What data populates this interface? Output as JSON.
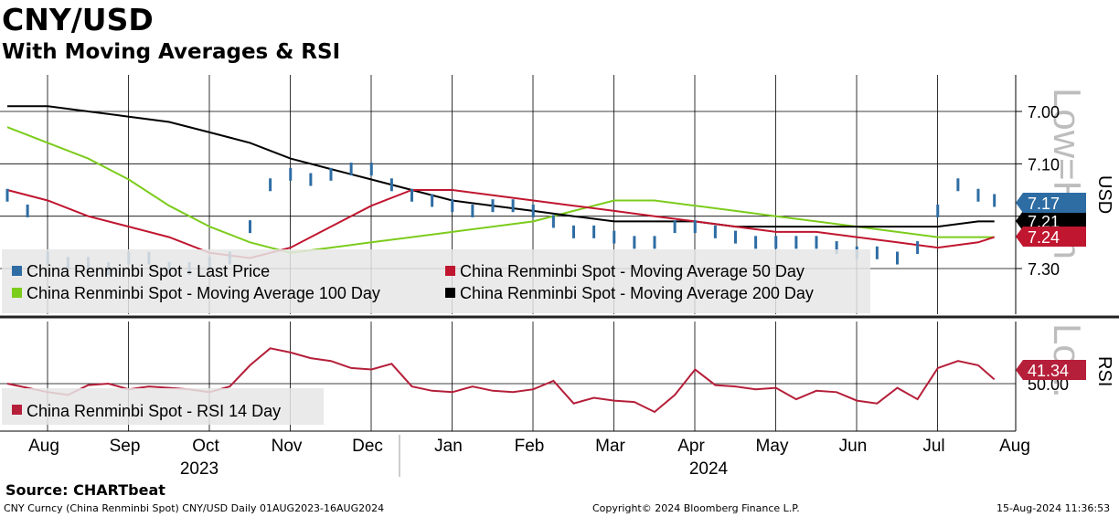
{
  "title": "CNY/USD",
  "subtitle": "With Moving Averages & RSI",
  "source": "Source: CHARTbeat",
  "footer": {
    "left": "CNY Curncy (China Renminbi Spot) CNY/USD  Daily 01AUG2023-16AUG2024",
    "center": "Copyright© 2024 Bloomberg Finance L.P.",
    "right": "15-Aug-2024 11:36:53"
  },
  "watermark": [
    "Low=High",
    "Lo..."
  ],
  "colors": {
    "price": "#2e6da4",
    "ma50": "#c0162f",
    "ma100": "#7ccc1c",
    "ma200": "#000000",
    "rsi": "#b51f3a",
    "legend_bg": "#e6e6e6"
  },
  "chart_data": [
    {
      "type": "line",
      "name": "price-panel",
      "ylabel": "USD",
      "y_inverted": true,
      "ylim": [
        6.96,
        7.36
      ],
      "yticks": [
        "7.00",
        "7.10",
        "7.20",
        "7.30"
      ],
      "yticks_values": [
        7.0,
        7.1,
        7.2,
        7.3
      ],
      "gridlines": [
        7.0,
        7.1,
        7.2,
        7.3
      ],
      "x_months": [
        "Aug",
        "Sep",
        "Oct",
        "Nov",
        "Dec",
        "Jan",
        "Feb",
        "Mar",
        "Apr",
        "May",
        "Jun",
        "Jul",
        "Aug"
      ],
      "x_years": [
        "2023",
        "2024"
      ],
      "legend": [
        "China Renminbi Spot - Last Price",
        "China Renminbi Spot - Moving Average 50 Day",
        "China Renminbi Spot - Moving Average 100 Day",
        "China Renminbi Spot - Moving Average 200 Day"
      ],
      "right_labels": [
        {
          "text": "7.17",
          "series": "price"
        },
        {
          "text": "7.21",
          "series": "ma200"
        },
        {
          "text": "7.24",
          "series": "ma50"
        }
      ],
      "series": [
        {
          "name": "China Renminbi Spot - Last Price",
          "key": "price",
          "x": [
            0,
            0.25,
            0.5,
            0.75,
            1,
            1.25,
            1.5,
            1.75,
            2,
            2.25,
            2.5,
            2.75,
            3,
            3.25,
            3.5,
            3.75,
            4,
            4.25,
            4.5,
            4.75,
            5,
            5.25,
            5.5,
            5.75,
            6,
            6.25,
            6.5,
            6.75,
            7,
            7.25,
            7.5,
            7.75,
            8,
            8.25,
            8.5,
            8.75,
            9,
            9.25,
            9.5,
            9.75,
            10,
            10.25,
            10.5,
            10.75,
            11,
            11.25,
            11.5,
            11.75,
            12,
            12.2
          ],
          "values": [
            7.16,
            7.19,
            7.28,
            7.29,
            7.29,
            7.3,
            7.28,
            7.28,
            7.3,
            7.3,
            7.29,
            7.28,
            7.22,
            7.14,
            7.12,
            7.13,
            7.12,
            7.11,
            7.11,
            7.14,
            7.16,
            7.17,
            7.18,
            7.19,
            7.18,
            7.18,
            7.19,
            7.21,
            7.23,
            7.23,
            7.24,
            7.25,
            7.25,
            7.22,
            7.22,
            7.23,
            7.24,
            7.25,
            7.25,
            7.25,
            7.25,
            7.26,
            7.27,
            7.27,
            7.28,
            7.26,
            7.19,
            7.14,
            7.16,
            7.17
          ]
        },
        {
          "name": "China Renminbi Spot - Moving Average 50 Day",
          "key": "ma50",
          "x": [
            0,
            0.5,
            1,
            1.5,
            2,
            2.5,
            3,
            3.5,
            4,
            4.5,
            5,
            5.5,
            6,
            6.5,
            7,
            7.5,
            8,
            8.5,
            9,
            9.5,
            10,
            10.5,
            11,
            11.5,
            12,
            12.2
          ],
          "values": [
            7.15,
            7.17,
            7.2,
            7.22,
            7.24,
            7.27,
            7.28,
            7.26,
            7.22,
            7.18,
            7.15,
            7.15,
            7.16,
            7.17,
            7.18,
            7.19,
            7.2,
            7.21,
            7.22,
            7.23,
            7.23,
            7.24,
            7.25,
            7.26,
            7.25,
            7.24
          ]
        },
        {
          "name": "China Renminbi Spot - Moving Average 100 Day",
          "key": "ma100",
          "x": [
            0,
            0.5,
            1,
            1.5,
            2,
            2.5,
            3,
            3.5,
            4,
            4.5,
            5,
            5.5,
            6,
            6.5,
            7,
            7.5,
            8,
            8.5,
            9,
            9.5,
            10,
            10.5,
            11,
            11.5,
            12,
            12.2
          ],
          "values": [
            7.03,
            7.06,
            7.09,
            7.13,
            7.18,
            7.22,
            7.25,
            7.27,
            7.26,
            7.25,
            7.24,
            7.23,
            7.22,
            7.21,
            7.19,
            7.17,
            7.17,
            7.18,
            7.19,
            7.2,
            7.21,
            7.22,
            7.23,
            7.24,
            7.24,
            7.24
          ]
        },
        {
          "name": "China Renminbi Spot - Moving Average 200 Day",
          "key": "ma200",
          "x": [
            0,
            0.5,
            1,
            1.5,
            2,
            2.5,
            3,
            3.5,
            4,
            4.5,
            5,
            5.5,
            6,
            6.5,
            7,
            7.5,
            8,
            8.5,
            9,
            9.5,
            10,
            10.5,
            11,
            11.5,
            12,
            12.2
          ],
          "values": [
            6.99,
            6.99,
            7.0,
            7.01,
            7.02,
            7.04,
            7.06,
            7.09,
            7.11,
            7.13,
            7.15,
            7.17,
            7.18,
            7.19,
            7.2,
            7.21,
            7.21,
            7.21,
            7.22,
            7.22,
            7.22,
            7.22,
            7.22,
            7.22,
            7.21,
            7.21
          ]
        }
      ]
    },
    {
      "type": "line",
      "name": "rsi-panel",
      "ylabel": "RSI",
      "ylim": [
        10,
        85
      ],
      "yticks": [
        "50.00"
      ],
      "yticks_values": [
        50
      ],
      "legend": [
        "China Renminbi Spot - RSI 14 Day"
      ],
      "right_labels": [
        {
          "text": "41.34",
          "series": "rsi"
        }
      ],
      "series": [
        {
          "name": "China Renminbi Spot - RSI 14 Day",
          "key": "rsi",
          "x": [
            0,
            0.25,
            0.5,
            0.75,
            1,
            1.25,
            1.5,
            1.75,
            2,
            2.25,
            2.5,
            2.75,
            3,
            3.25,
            3.5,
            3.75,
            4,
            4.25,
            4.5,
            4.75,
            5,
            5.25,
            5.5,
            5.75,
            6,
            6.25,
            6.5,
            6.75,
            7,
            7.25,
            7.5,
            7.75,
            8,
            8.25,
            8.5,
            8.75,
            9,
            9.25,
            9.5,
            9.75,
            10,
            10.25,
            10.5,
            10.75,
            11,
            11.25,
            11.5,
            11.75,
            12,
            12.2
          ],
          "values": [
            50,
            47,
            44,
            42,
            49,
            50,
            46,
            48,
            47,
            46,
            44,
            48,
            63,
            75,
            72,
            68,
            66,
            61,
            60,
            64,
            48,
            45,
            44,
            48,
            45,
            44,
            46,
            52,
            36,
            40,
            38,
            37,
            30,
            42,
            60,
            49,
            48,
            46,
            47,
            39,
            45,
            44,
            38,
            36,
            47,
            39,
            61,
            66,
            63,
            53
          ]
        }
      ]
    }
  ]
}
